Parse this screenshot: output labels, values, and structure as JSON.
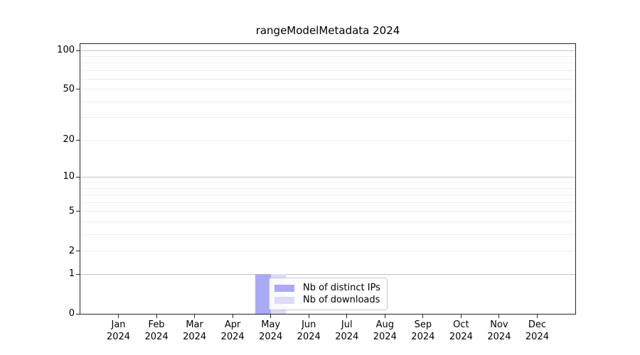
{
  "chart_data": {
    "type": "bar",
    "title": "rangeModelMetadata 2024",
    "x_categories": [
      "Jan",
      "Feb",
      "Mar",
      "Apr",
      "May",
      "Jun",
      "Jul",
      "Aug",
      "Sep",
      "Oct",
      "Nov",
      "Dec"
    ],
    "x_year": "2024",
    "series": [
      {
        "name": "Nb of distinct IPs",
        "color": "#a9a9f4",
        "values": [
          0,
          0,
          0,
          0,
          1,
          0,
          0,
          0,
          0,
          0,
          0,
          0
        ]
      },
      {
        "name": "Nb of downloads",
        "color": "#dcdcf8",
        "values": [
          0,
          0,
          0,
          0,
          1,
          0,
          0,
          0,
          0,
          0,
          0,
          0
        ]
      }
    ],
    "yscale": "log1p",
    "ylim": [
      0,
      112
    ],
    "yticks_labeled": [
      0,
      1,
      2,
      5,
      10,
      20,
      50,
      100
    ],
    "gridlines_strong": [
      1,
      10,
      100
    ],
    "gridlines_faint": [
      2,
      3,
      4,
      5,
      6,
      7,
      8,
      9,
      20,
      30,
      40,
      50,
      60,
      70,
      80,
      90
    ],
    "grid": "horizontal",
    "legend_position": "bottom-center-inside"
  },
  "colors": {
    "grid_strong": "#c3c3c3",
    "grid_faint": "#ededed",
    "spine": "#262626",
    "tick": "#262626",
    "text": "#000000",
    "legend_border": "#c9c9c9"
  }
}
